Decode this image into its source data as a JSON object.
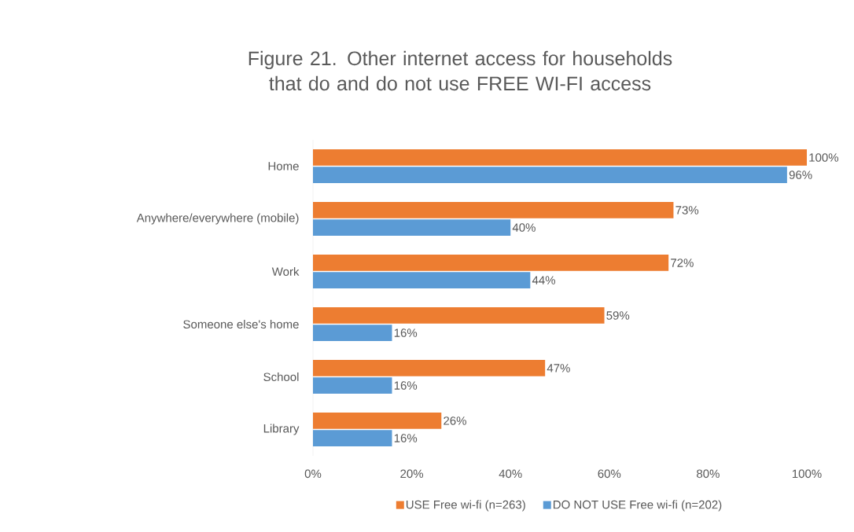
{
  "chart_data": {
    "type": "bar",
    "orientation": "horizontal",
    "title": "Figure 21. Other internet access for households that do and do not use FREE WI-FI access",
    "categories": [
      "Home",
      "Anywhere/everywhere (mobile)",
      "Work",
      "Someone else's home",
      "School",
      "Library"
    ],
    "series": [
      {
        "name": "USE Free wi-fi (n=263)",
        "color": "#ed7d31",
        "values": [
          100,
          73,
          72,
          59,
          47,
          26
        ],
        "value_labels": [
          "100%",
          "73%",
          "72%",
          "59%",
          "47%",
          "26%"
        ]
      },
      {
        "name": "DO NOT USE Free wi-fi (n=202)",
        "color": "#5b9bd5",
        "values": [
          96,
          40,
          44,
          16,
          16,
          16
        ],
        "value_labels": [
          "96%",
          "40%",
          "44%",
          "16%",
          "16%",
          "16%"
        ]
      }
    ],
    "xlim": [
      0,
      100
    ],
    "xticks": [
      {
        "value": 0,
        "label": "0%"
      },
      {
        "value": 20,
        "label": "20%"
      },
      {
        "value": 40,
        "label": "40%"
      },
      {
        "value": 60,
        "label": "60%"
      },
      {
        "value": 80,
        "label": "80%"
      },
      {
        "value": 100,
        "label": "100%"
      }
    ],
    "grid": false,
    "legend": "bottom"
  }
}
